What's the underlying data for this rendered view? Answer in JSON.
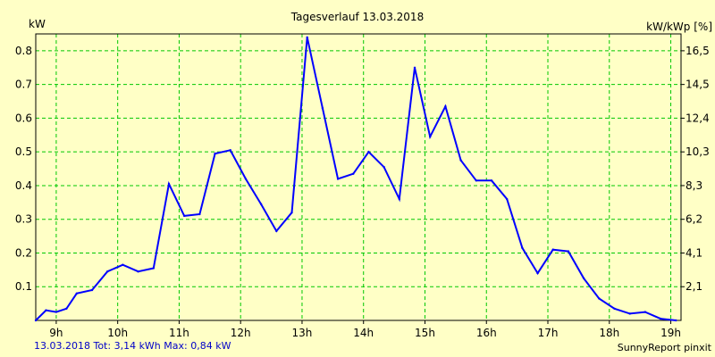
{
  "chart_data": {
    "type": "line",
    "title": "Tagesverlauf 13.03.2018",
    "ylabel_left": "kW",
    "ylabel_right": "kW/kWp [%]",
    "xlim": [
      8.6667,
      19.1667
    ],
    "ylim": [
      0,
      0.85
    ],
    "x_ticks": [
      9,
      10,
      11,
      12,
      13,
      14,
      15,
      16,
      17,
      18,
      19
    ],
    "x_tick_labels": [
      "9h",
      "10h",
      "11h",
      "12h",
      "13h",
      "14h",
      "15h",
      "16h",
      "17h",
      "18h",
      "19h"
    ],
    "y_ticks_left": [
      0.1,
      0.2,
      0.3,
      0.4,
      0.5,
      0.6,
      0.7,
      0.8
    ],
    "y_tick_labels_left": [
      "0.1",
      "0.2",
      "0.3",
      "0.4",
      "0.5",
      "0.6",
      "0.7",
      "0.8"
    ],
    "y_tick_labels_right": [
      "2,1",
      "4,1",
      "6,2",
      "8,3",
      "10,3",
      "12,4",
      "14,5",
      "16,5"
    ],
    "grid": true,
    "colors": {
      "line": "#0000ff",
      "grid": "#00c800",
      "background": "#ffffc6",
      "footer_left": "#0000c8"
    },
    "series": [
      {
        "x": [
          8.6667,
          8.8333,
          9.0,
          9.1667,
          9.3333,
          9.5833,
          9.8333,
          10.0833,
          10.3333,
          10.5833,
          10.8333,
          11.0833,
          11.3333,
          11.5833,
          11.8333,
          12.0833,
          12.3333,
          12.5833,
          12.8333,
          13.0833,
          13.3333,
          13.5833,
          13.8333,
          14.0833,
          14.3333,
          14.5833,
          14.8333,
          15.0833,
          15.3333,
          15.5833,
          15.8333,
          16.0833,
          16.3333,
          16.5833,
          16.8333,
          17.0833,
          17.3333,
          17.5833,
          17.8333,
          18.0833,
          18.3333,
          18.5833,
          18.8333,
          19.0833
        ],
        "values": [
          0.0,
          0.03,
          0.025,
          0.035,
          0.08,
          0.09,
          0.145,
          0.165,
          0.145,
          0.155,
          0.405,
          0.31,
          0.315,
          0.495,
          0.505,
          0.42,
          0.345,
          0.265,
          0.32,
          0.84,
          0.63,
          0.42,
          0.435,
          0.5,
          0.455,
          0.36,
          0.75,
          0.545,
          0.635,
          0.475,
          0.415,
          0.415,
          0.36,
          0.215,
          0.14,
          0.21,
          0.205,
          0.125,
          0.065,
          0.035,
          0.02,
          0.025,
          0.005,
          0.0
        ]
      }
    ]
  },
  "footer": {
    "summary": "13.03.2018 Tot: 3,14 kWh Max: 0,84 kW",
    "brand": "SunnyReport pinxit"
  }
}
